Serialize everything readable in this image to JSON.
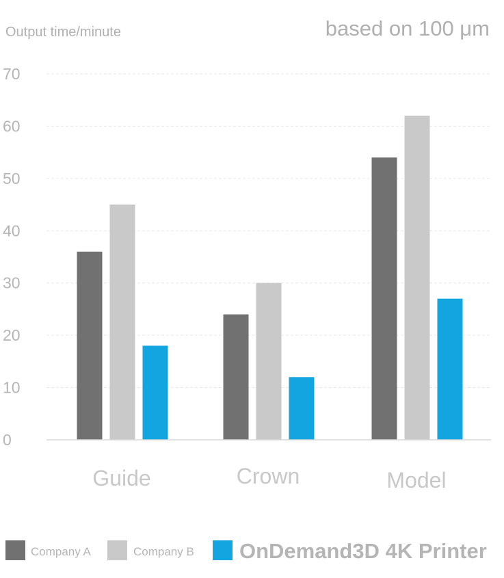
{
  "chart_data": {
    "type": "bar",
    "ylabel": "Output time/minute",
    "subtitle": "based on 100 μm",
    "categories": [
      "Guide",
      "Crown",
      "Model"
    ],
    "ylim": [
      0,
      70
    ],
    "yticks": [
      0,
      10,
      20,
      30,
      40,
      50,
      60,
      70
    ],
    "grid": true,
    "legend_position": "bottom",
    "series": [
      {
        "name": "Company A",
        "values": [
          36,
          24,
          54
        ],
        "color": "#717171"
      },
      {
        "name": "Company B",
        "values": [
          45,
          30,
          62
        ],
        "color": "#c9c9c9"
      },
      {
        "name": "OnDemand3D 4K Printer",
        "values": [
          18,
          12,
          27
        ],
        "color": "#12a5e0"
      }
    ]
  }
}
